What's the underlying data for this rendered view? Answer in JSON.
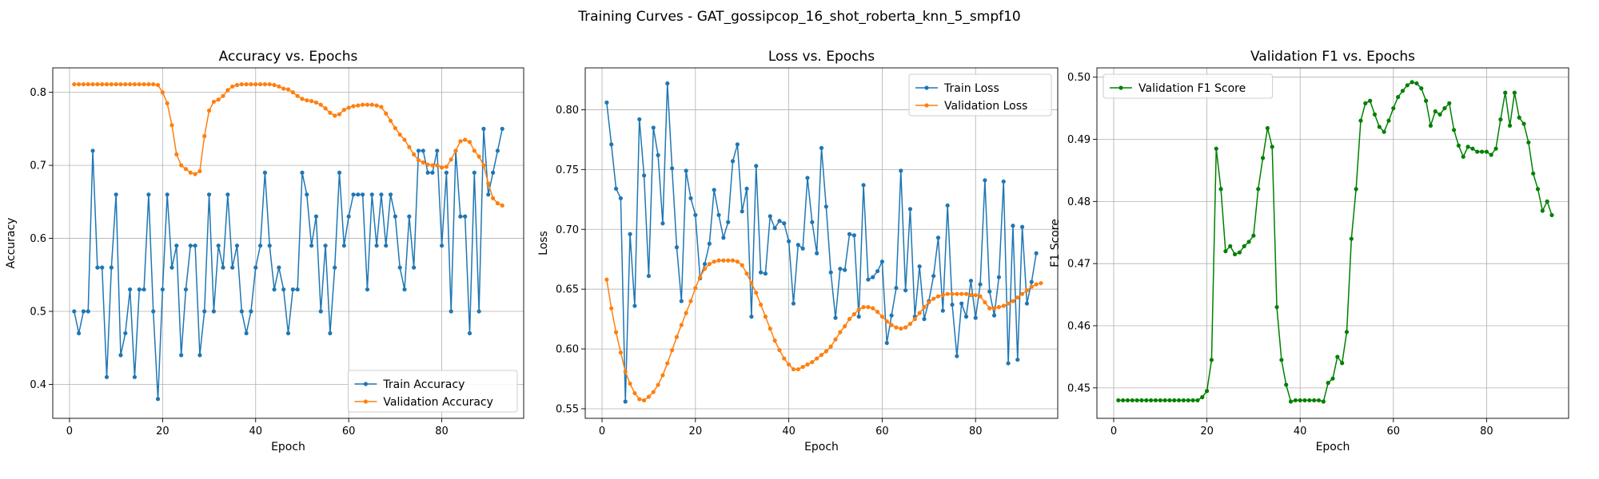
{
  "figure": {
    "title": "Training Curves - GAT_gossipcop_16_shot_roberta_knn_5_smpf10"
  },
  "chart_data": [
    {
      "type": "line",
      "title": "Accuracy vs. Epochs",
      "xlabel": "Epoch",
      "ylabel": "Accuracy",
      "xlim": [
        -3.6,
        97.6
      ],
      "ylim": [
        0.3535,
        0.8335
      ],
      "xticks": [
        0,
        20,
        40,
        60,
        80
      ],
      "yticks": [
        0.4,
        0.5,
        0.6,
        0.7,
        0.8
      ],
      "ytick_labels": [
        "0.4",
        "0.5",
        "0.6",
        "0.7",
        "0.8"
      ],
      "grid": true,
      "legend": "lower right",
      "series": [
        {
          "name": "Train Accuracy",
          "color": "#1f77b4",
          "values": [
            0.5,
            0.47,
            0.5,
            0.5,
            0.72,
            0.56,
            0.56,
            0.41,
            0.56,
            0.66,
            0.44,
            0.47,
            0.53,
            0.41,
            0.53,
            0.53,
            0.66,
            0.5,
            0.38,
            0.53,
            0.66,
            0.56,
            0.59,
            0.44,
            0.53,
            0.59,
            0.59,
            0.44,
            0.5,
            0.66,
            0.5,
            0.59,
            0.56,
            0.66,
            0.56,
            0.59,
            0.5,
            0.47,
            0.5,
            0.56,
            0.59,
            0.69,
            0.59,
            0.53,
            0.56,
            0.53,
            0.47,
            0.53,
            0.53,
            0.69,
            0.66,
            0.59,
            0.63,
            0.5,
            0.59,
            0.47,
            0.56,
            0.69,
            0.59,
            0.63,
            0.66,
            0.66,
            0.66,
            0.53,
            0.66,
            0.59,
            0.66,
            0.59,
            0.66,
            0.63,
            0.56,
            0.53,
            0.63,
            0.56,
            0.72,
            0.72,
            0.69,
            0.69,
            0.72,
            0.59,
            0.69,
            0.5,
            0.72,
            0.63,
            0.63,
            0.47,
            0.69,
            0.5,
            0.75,
            0.66,
            0.69,
            0.72,
            0.75
          ]
        },
        {
          "name": "Validation Accuracy",
          "color": "#ff7f0e",
          "values": [
            0.811,
            0.811,
            0.811,
            0.811,
            0.811,
            0.811,
            0.811,
            0.811,
            0.811,
            0.811,
            0.811,
            0.811,
            0.811,
            0.811,
            0.811,
            0.811,
            0.811,
            0.811,
            0.81,
            0.8,
            0.785,
            0.755,
            0.715,
            0.7,
            0.695,
            0.69,
            0.688,
            0.692,
            0.74,
            0.775,
            0.787,
            0.79,
            0.795,
            0.803,
            0.808,
            0.81,
            0.811,
            0.811,
            0.811,
            0.811,
            0.811,
            0.811,
            0.811,
            0.81,
            0.808,
            0.805,
            0.804,
            0.8,
            0.795,
            0.791,
            0.789,
            0.788,
            0.786,
            0.783,
            0.778,
            0.772,
            0.768,
            0.77,
            0.776,
            0.779,
            0.781,
            0.782,
            0.783,
            0.783,
            0.783,
            0.782,
            0.78,
            0.771,
            0.761,
            0.751,
            0.742,
            0.735,
            0.725,
            0.715,
            0.707,
            0.704,
            0.701,
            0.7,
            0.7,
            0.697,
            0.698,
            0.708,
            0.72,
            0.733,
            0.735,
            0.732,
            0.72,
            0.712,
            0.7,
            0.675,
            0.655,
            0.648,
            0.645
          ]
        }
      ]
    },
    {
      "type": "line",
      "title": "Loss vs. Epochs",
      "xlabel": "Epoch",
      "ylabel": "Loss",
      "xlim": [
        -3.6,
        97.6
      ],
      "ylim": [
        0.542,
        0.835
      ],
      "xticks": [
        0,
        20,
        40,
        60,
        80
      ],
      "yticks": [
        0.55,
        0.6,
        0.65,
        0.7,
        0.75,
        0.8
      ],
      "ytick_labels": [
        "0.55",
        "0.60",
        "0.65",
        "0.70",
        "0.75",
        "0.80"
      ],
      "grid": true,
      "legend": "upper right",
      "series": [
        {
          "name": "Train Loss",
          "color": "#1f77b4",
          "values": [
            0.806,
            0.771,
            0.734,
            0.726,
            0.556,
            0.696,
            0.636,
            0.792,
            0.745,
            0.661,
            0.785,
            0.762,
            0.705,
            0.822,
            0.751,
            0.685,
            0.64,
            0.749,
            0.726,
            0.712,
            0.659,
            0.671,
            0.688,
            0.733,
            0.712,
            0.693,
            0.706,
            0.757,
            0.771,
            0.715,
            0.734,
            0.627,
            0.753,
            0.664,
            0.663,
            0.711,
            0.701,
            0.707,
            0.705,
            0.69,
            0.638,
            0.687,
            0.684,
            0.743,
            0.706,
            0.68,
            0.768,
            0.719,
            0.664,
            0.626,
            0.667,
            0.666,
            0.696,
            0.695,
            0.627,
            0.737,
            0.658,
            0.66,
            0.665,
            0.673,
            0.605,
            0.628,
            0.651,
            0.749,
            0.649,
            0.717,
            0.627,
            0.669,
            0.625,
            0.64,
            0.661,
            0.693,
            0.632,
            0.72,
            0.637,
            0.594,
            0.638,
            0.627,
            0.657,
            0.626,
            0.654,
            0.741,
            0.648,
            0.628,
            0.66,
            0.74,
            0.588,
            0.703,
            0.591,
            0.702,
            0.638,
            0.656,
            0.68
          ]
        },
        {
          "name": "Validation Loss",
          "color": "#ff7f0e",
          "values": [
            0.658,
            0.634,
            0.614,
            0.597,
            0.581,
            0.571,
            0.563,
            0.558,
            0.557,
            0.56,
            0.564,
            0.57,
            0.578,
            0.588,
            0.599,
            0.61,
            0.62,
            0.63,
            0.64,
            0.651,
            0.66,
            0.667,
            0.671,
            0.673,
            0.674,
            0.674,
            0.674,
            0.674,
            0.673,
            0.67,
            0.663,
            0.655,
            0.647,
            0.637,
            0.627,
            0.617,
            0.607,
            0.599,
            0.592,
            0.587,
            0.583,
            0.583,
            0.585,
            0.587,
            0.589,
            0.592,
            0.595,
            0.598,
            0.602,
            0.608,
            0.614,
            0.619,
            0.625,
            0.629,
            0.633,
            0.635,
            0.635,
            0.634,
            0.631,
            0.627,
            0.623,
            0.62,
            0.618,
            0.617,
            0.618,
            0.621,
            0.625,
            0.63,
            0.635,
            0.639,
            0.642,
            0.644,
            0.645,
            0.646,
            0.646,
            0.646,
            0.646,
            0.646,
            0.645,
            0.645,
            0.644,
            0.639,
            0.634,
            0.634,
            0.635,
            0.636,
            0.638,
            0.64,
            0.643,
            0.646,
            0.649,
            0.652,
            0.654,
            0.655
          ]
        }
      ]
    },
    {
      "type": "line",
      "title": "Validation F1 vs. Epochs",
      "xlabel": "Epoch",
      "ylabel": "F1 Score",
      "xlim": [
        -3.6,
        97.6
      ],
      "ylim": [
        0.4451,
        0.5015
      ],
      "xticks": [
        0,
        20,
        40,
        60,
        80
      ],
      "yticks": [
        0.45,
        0.46,
        0.47,
        0.48,
        0.49,
        0.5
      ],
      "ytick_labels": [
        "0.45",
        "0.46",
        "0.47",
        "0.48",
        "0.49",
        "0.50"
      ],
      "grid": true,
      "legend": "upper left",
      "series": [
        {
          "name": "Validation F1 Score",
          "color": "#008000",
          "values": [
            0.448,
            0.448,
            0.448,
            0.448,
            0.448,
            0.448,
            0.448,
            0.448,
            0.448,
            0.448,
            0.448,
            0.448,
            0.448,
            0.448,
            0.448,
            0.448,
            0.448,
            0.448,
            0.4485,
            0.4495,
            0.4545,
            0.4885,
            0.482,
            0.472,
            0.4728,
            0.4715,
            0.4718,
            0.4728,
            0.4735,
            0.4745,
            0.482,
            0.487,
            0.4918,
            0.4888,
            0.463,
            0.4545,
            0.4505,
            0.4478,
            0.448,
            0.448,
            0.448,
            0.448,
            0.448,
            0.448,
            0.4478,
            0.4508,
            0.4515,
            0.455,
            0.454,
            0.459,
            0.474,
            0.482,
            0.493,
            0.4958,
            0.4962,
            0.494,
            0.492,
            0.4912,
            0.493,
            0.495,
            0.4968,
            0.4978,
            0.4987,
            0.4992,
            0.499,
            0.4982,
            0.4962,
            0.4922,
            0.4945,
            0.494,
            0.495,
            0.4958,
            0.4915,
            0.489,
            0.4872,
            0.4888,
            0.4885,
            0.488,
            0.488,
            0.488,
            0.4875,
            0.4885,
            0.4932,
            0.4975,
            0.4922,
            0.4975,
            0.4935,
            0.4925,
            0.4895,
            0.4845,
            0.482,
            0.4785,
            0.48,
            0.4778
          ]
        }
      ]
    }
  ]
}
